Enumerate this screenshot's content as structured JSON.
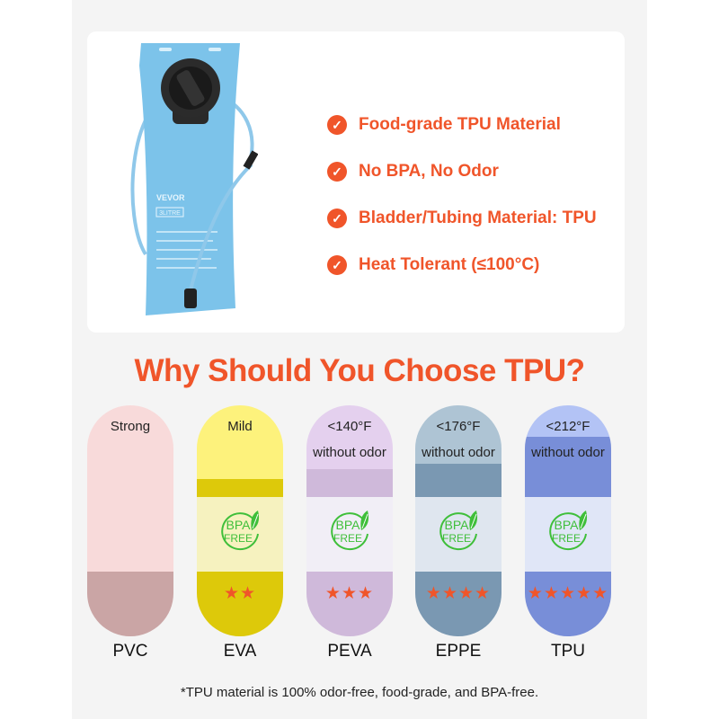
{
  "product": {
    "brand": "VEVOR",
    "capacity": "3LITRE"
  },
  "features": [
    {
      "label": "Food-grade TPU Material",
      "icon": "check-circle-icon"
    },
    {
      "label": "No BPA, No Odor",
      "icon": "check-circle-icon"
    },
    {
      "label": "Bladder/Tubing Material: TPU",
      "icon": "check-circle-icon"
    },
    {
      "label": "Heat Tolerant (≤100°C)",
      "icon": "check-circle-icon"
    }
  ],
  "title": "Why Should You Choose TPU?",
  "badge": {
    "line1": "BPA",
    "line2": "FREE"
  },
  "materials": [
    {
      "name": "PVC",
      "top": "Strong",
      "sub": "",
      "bpa_free": false,
      "stars": 0,
      "colors": {
        "top": "#f8dada",
        "band": "#f8dada",
        "mid": "#f8dada",
        "bottom": "#caa5a5"
      }
    },
    {
      "name": "EVA",
      "top": "Mild",
      "sub": "",
      "bpa_free": true,
      "stars": 2,
      "colors": {
        "top": "#fdf27c",
        "band": "#ddc90a",
        "mid": "#f6f2bf",
        "bottom": "#ddc90a"
      }
    },
    {
      "name": "PEVA",
      "top": "<140°F",
      "sub": "without odor",
      "bpa_free": true,
      "stars": 3,
      "colors": {
        "top": "#e4d0ee",
        "band": "#cfb9da",
        "mid": "#f1eef6",
        "bottom": "#cfb9da"
      }
    },
    {
      "name": "EPPE",
      "top": "<176°F",
      "sub": "without odor",
      "bpa_free": true,
      "stars": 4,
      "colors": {
        "top": "#aec4d4",
        "band": "#7a98b2",
        "mid": "#dfe6ef",
        "bottom": "#7a98b2"
      }
    },
    {
      "name": "TPU",
      "top": "<212°F",
      "sub": "without odor",
      "bpa_free": true,
      "stars": 5,
      "colors": {
        "top": "#b3c3f5",
        "band": "#788ed8",
        "mid": "#e0e6f7",
        "bottom": "#788ed8"
      }
    }
  ],
  "footnote": "*TPU material is 100% odor-free, food-grade, and BPA-free.",
  "accent": "#f0552a"
}
